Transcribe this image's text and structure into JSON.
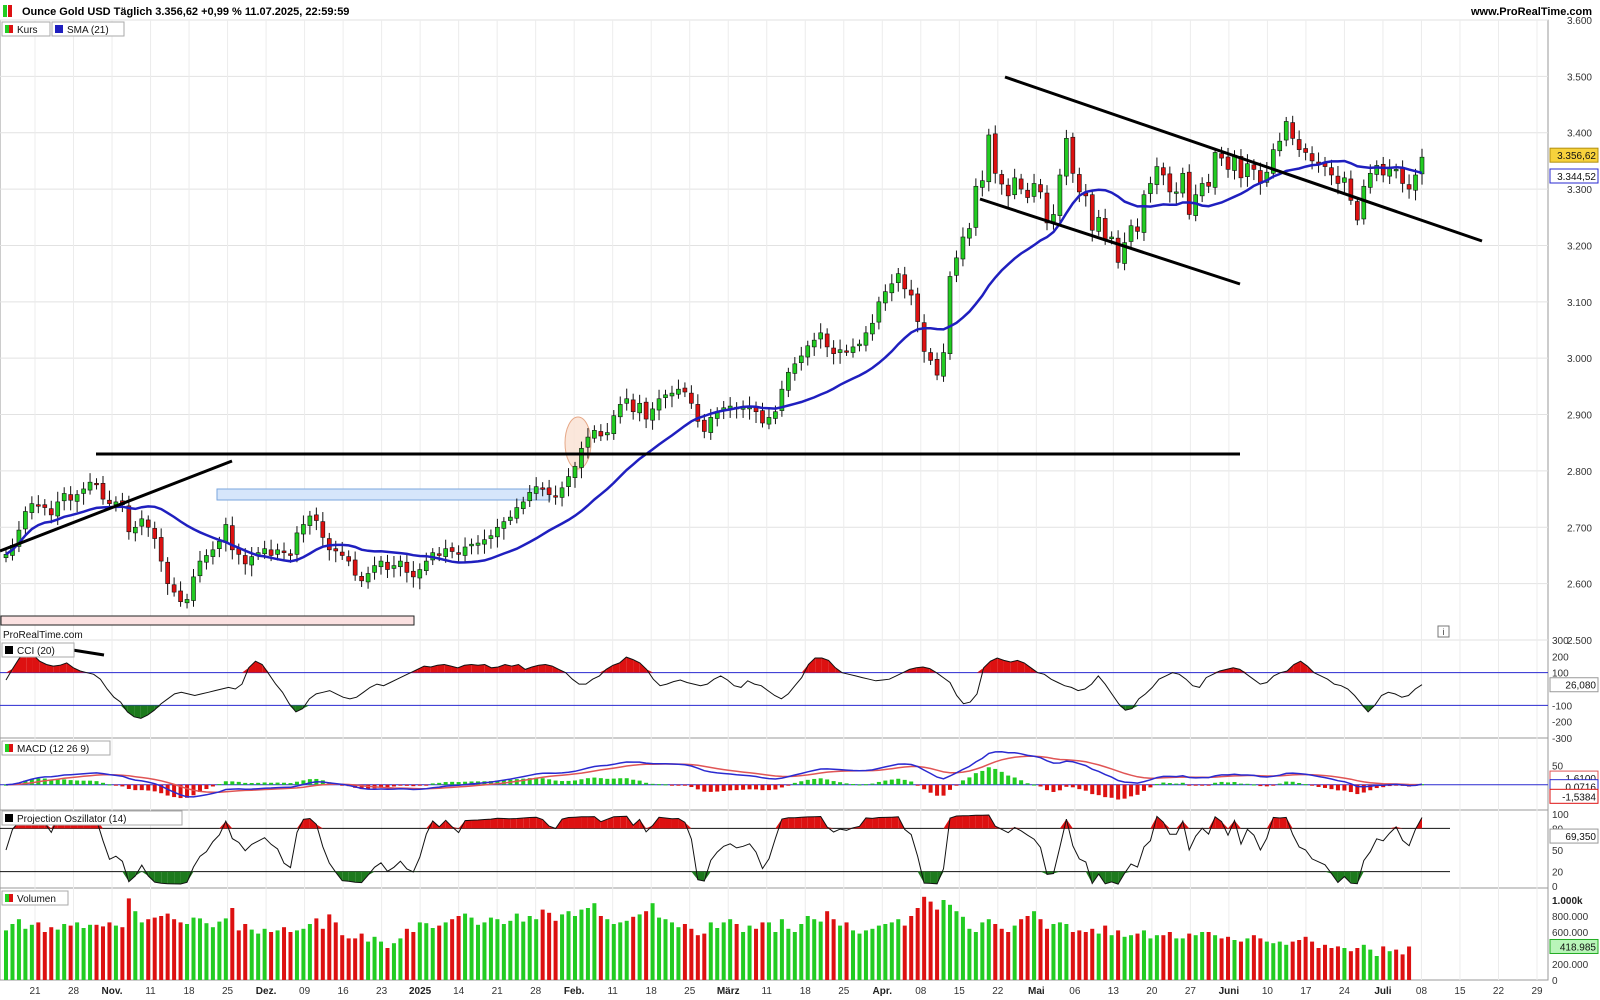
{
  "header": {
    "title": "Ounce Gold USD Täglich 3.356,62 +0,99 % 11.07.2025, 22:59:59",
    "site": "www.ProRealTime.com",
    "watermark": "ProRealTime.com",
    "info_icon": "info-icon"
  },
  "colors": {
    "up": "#22cc22",
    "down": "#dd1111",
    "sma": "#1f1fbf",
    "trendline": "#000000",
    "zone_blue": "#b8d2f5",
    "zone_pink": "#f9d0d0",
    "grid": "#e2e2e2"
  },
  "chart_data": [
    {
      "type": "candlestick",
      "panel": "price",
      "legend": [
        {
          "name": "Kurs",
          "swatch": "up-down"
        },
        {
          "name": "SMA (21)",
          "swatch": "#1f1fbf"
        }
      ],
      "ylim": [
        2500,
        3600
      ],
      "y_ticks": [
        "3.600",
        "3.500",
        "3.400",
        "3.300",
        "3.200",
        "3.100",
        "3.000",
        "2.900",
        "2.800",
        "2.700",
        "2.600",
        "2.500"
      ],
      "x_ticks": [
        "21",
        "28",
        "Nov.",
        "11",
        "18",
        "25",
        "Dez.",
        "09",
        "16",
        "23",
        "2025",
        "14",
        "21",
        "28",
        "Feb.",
        "11",
        "18",
        "25",
        "März",
        "11",
        "18",
        "25",
        "Apr.",
        "08",
        "15",
        "22",
        "Mai",
        "06",
        "13",
        "20",
        "27",
        "Juni",
        "10",
        "17",
        "24",
        "Juli",
        "08",
        "15",
        "22",
        "29"
      ],
      "badges": [
        {
          "label": "3.356,62",
          "value": 3356.62,
          "role": "last-price"
        },
        {
          "label": "3.344,52",
          "value": 3344.52,
          "role": "sma"
        }
      ],
      "closes": [
        2652,
        2668,
        2695,
        2728,
        2742,
        2738,
        2735,
        2722,
        2745,
        2760,
        2748,
        2758,
        2768,
        2780,
        2776,
        2750,
        2742,
        2745,
        2740,
        2692,
        2700,
        2715,
        2700,
        2680,
        2640,
        2600,
        2585,
        2568,
        2572,
        2612,
        2640,
        2650,
        2660,
        2675,
        2705,
        2660,
        2652,
        2635,
        2648,
        2655,
        2662,
        2650,
        2660,
        2655,
        2650,
        2690,
        2705,
        2720,
        2712,
        2682,
        2660,
        2658,
        2650,
        2640,
        2615,
        2605,
        2618,
        2632,
        2640,
        2625,
        2632,
        2640,
        2620,
        2612,
        2625,
        2640,
        2655,
        2650,
        2662,
        2657,
        2652,
        2665,
        2670,
        2672,
        2678,
        2685,
        2700,
        2710,
        2718,
        2735,
        2745,
        2762,
        2772,
        2768,
        2758,
        2755,
        2770,
        2790,
        2808,
        2840,
        2860,
        2872,
        2862,
        2868,
        2898,
        2918,
        2928,
        2905,
        2920,
        2892,
        2910,
        2928,
        2935,
        2938,
        2945,
        2940,
        2920,
        2888,
        2870,
        2895,
        2905,
        2912,
        2915,
        2910,
        2912,
        2915,
        2905,
        2885,
        2895,
        2905,
        2945,
        2975,
        2990,
        3004,
        3022,
        3032,
        3045,
        3020,
        3008,
        3015,
        3012,
        3020,
        3025,
        3045,
        3062,
        3100,
        3118,
        3132,
        3150,
        3123,
        3112,
        3065,
        3012,
        2996,
        2970,
        3010,
        3145,
        3178,
        3215,
        3230,
        3305,
        3315,
        3396,
        3328,
        3309,
        3288,
        3320,
        3300,
        3285,
        3310,
        3295,
        3240,
        3255,
        3325,
        3390,
        3328,
        3295,
        3288,
        3227,
        3250,
        3210,
        3215,
        3170,
        3205,
        3235,
        3225,
        3290,
        3310,
        3340,
        3325,
        3295,
        3295,
        3328,
        3255,
        3290,
        3310,
        3305,
        3365,
        3355,
        3335,
        3360,
        3320,
        3345,
        3335,
        3310,
        3330,
        3370,
        3385,
        3420,
        3390,
        3370,
        3365,
        3350,
        3345,
        3340,
        3325,
        3310,
        3320,
        3280,
        3245,
        3305,
        3328,
        3342,
        3325,
        3336,
        3335,
        3310,
        3300,
        3325,
        3356.62
      ],
      "sma_closes_prefix_last": 3344.52
    },
    {
      "type": "line",
      "panel": "CCI",
      "legend": [
        {
          "name": "CCI (20)",
          "swatch": "#000000"
        }
      ],
      "ylim": [
        -300,
        300
      ],
      "y_ticks": [
        "300",
        "200",
        "100",
        "-100",
        "-200",
        "-300"
      ],
      "levels": [
        100,
        -100
      ],
      "badge": {
        "label": "26,080",
        "value": 26.08
      },
      "values": [
        55,
        125,
        190,
        225,
        210,
        170,
        150,
        140,
        145,
        160,
        130,
        110,
        100,
        90,
        60,
        0,
        -50,
        -80,
        -140,
        -170,
        -180,
        -160,
        -130,
        -90,
        -60,
        -30,
        -20,
        -30,
        -40,
        -30,
        -20,
        -10,
        0,
        10,
        0,
        30,
        130,
        170,
        150,
        90,
        30,
        -20,
        -90,
        -140,
        -120,
        -60,
        -30,
        -20,
        -10,
        -30,
        -50,
        -60,
        -50,
        -20,
        10,
        30,
        20,
        40,
        60,
        80,
        100,
        120,
        140,
        135,
        145,
        150,
        140,
        130,
        145,
        150,
        145,
        150,
        130,
        135,
        150,
        140,
        150,
        120,
        135,
        145,
        150,
        140,
        120,
        100,
        60,
        30,
        30,
        60,
        80,
        120,
        145,
        160,
        195,
        180,
        160,
        120,
        60,
        20,
        30,
        45,
        55,
        40,
        30,
        20,
        30,
        60,
        80,
        55,
        20,
        10,
        50,
        30,
        20,
        -10,
        -40,
        -60,
        -30,
        20,
        70,
        150,
        190,
        190,
        175,
        130,
        100,
        90,
        80,
        70,
        60,
        50,
        55,
        60,
        80,
        100,
        120,
        130,
        135,
        125,
        100,
        70,
        40,
        -40,
        -90,
        -80,
        -30,
        130,
        170,
        190,
        175,
        165,
        175,
        160,
        130,
        100,
        90,
        60,
        40,
        20,
        10,
        -10,
        0,
        30,
        80,
        30,
        -30,
        -90,
        -130,
        -120,
        -60,
        -30,
        10,
        60,
        80,
        100,
        90,
        60,
        20,
        10,
        70,
        90,
        110,
        120,
        130,
        120,
        90,
        60,
        30,
        40,
        80,
        100,
        110,
        150,
        170,
        140,
        100,
        80,
        60,
        30,
        20,
        0,
        -40,
        -90,
        -140,
        -100,
        -40,
        -20,
        -30,
        -50,
        -40,
        0,
        26.08
      ]
    },
    {
      "type": "line+bar",
      "panel": "MACD",
      "legend": [
        {
          "name": "MACD (12 26 9)",
          "swatch": "up-down"
        }
      ],
      "ylim": [
        -60,
        110
      ],
      "y_ticks": [
        "50"
      ],
      "badges": [
        {
          "label": "1,6100",
          "value": 1.61,
          "role": "signal"
        },
        {
          "label": "0,0716",
          "value": 0.0716,
          "role": "macd"
        },
        {
          "label": "-1,5384",
          "value": -1.5384,
          "role": "histogram"
        }
      ],
      "macd_start": 10,
      "signal_start": 8,
      "ema_fast": 12,
      "ema_slow": 26,
      "signal_period": 9
    },
    {
      "type": "line",
      "panel": "Projection Oszillator",
      "legend": [
        {
          "name": "Projection Oszillator (14)",
          "swatch": "#000000"
        }
      ],
      "ylim": [
        0,
        100
      ],
      "y_ticks": [
        "100",
        "80",
        "50",
        "20",
        "0"
      ],
      "levels": [
        80,
        20
      ],
      "badge": {
        "label": "69,350",
        "value": 69.35
      },
      "period": 14
    },
    {
      "type": "bar",
      "panel": "Volumen",
      "legend": [
        {
          "name": "Volumen",
          "swatch": "up-down"
        }
      ],
      "ylim": [
        0,
        1100000
      ],
      "y_ticks": [
        "1.000k",
        "800.000",
        "600.000",
        "400.000",
        "200.000",
        "0"
      ],
      "badge": {
        "label": "418.985",
        "value": 418985
      },
      "values": [
        620000,
        700000,
        760000,
        640000,
        690000,
        720000,
        600000,
        660000,
        630000,
        700000,
        680000,
        720000,
        650000,
        690000,
        690000,
        670000,
        720000,
        680000,
        660000,
        1020000,
        860000,
        720000,
        760000,
        780000,
        800000,
        830000,
        760000,
        720000,
        700000,
        780000,
        770000,
        710000,
        660000,
        730000,
        770000,
        900000,
        620000,
        700000,
        630000,
        580000,
        640000,
        600000,
        620000,
        660000,
        600000,
        620000,
        640000,
        700000,
        770000,
        640000,
        820000,
        720000,
        560000,
        520000,
        520000,
        580000,
        480000,
        540000,
        480000,
        400000,
        460000,
        520000,
        640000,
        600000,
        720000,
        710000,
        650000,
        680000,
        720000,
        760000,
        800000,
        830000,
        780000,
        690000,
        720000,
        780000,
        760000,
        700000,
        740000,
        830000,
        730000,
        800000,
        760000,
        880000,
        840000,
        740000,
        820000,
        860000,
        800000,
        880000,
        900000,
        960000,
        800000,
        760000,
        700000,
        720000,
        740000,
        790000,
        820000,
        860000,
        960000,
        780000,
        760000,
        720000,
        660000,
        700000,
        640000,
        560000,
        580000,
        720000,
        650000,
        720000,
        760000,
        700000,
        600000,
        680000,
        640000,
        720000,
        720000,
        600000,
        760000,
        640000,
        600000,
        700000,
        800000,
        760000,
        730000,
        860000,
        760000,
        680000,
        720000,
        620000,
        580000,
        620000,
        640000,
        680000,
        700000,
        720000,
        760000,
        680000,
        800000,
        900000,
        1040000,
        980000,
        880000,
        1000000,
        940000,
        860000,
        790000,
        640000,
        600000,
        720000,
        760000,
        700000,
        640000,
        600000,
        680000,
        760000,
        800000,
        860000,
        760000,
        640000,
        700000,
        720000,
        700000,
        600000,
        620000,
        600000,
        640000,
        580000,
        680000,
        560000,
        620000,
        540000,
        560000,
        580000,
        620000,
        520000,
        560000,
        560000,
        600000,
        520000,
        520000,
        580000,
        560000,
        600000,
        600000,
        560000,
        520000,
        540000,
        500000,
        480000,
        520000,
        560000,
        520000,
        480000,
        460000,
        480000,
        440000,
        480000,
        500000,
        540000,
        480000,
        400000,
        440000,
        400000,
        420000,
        400000,
        360000,
        400000,
        440000,
        380000,
        300000,
        420000,
        360000,
        380000,
        320000,
        418985
      ]
    }
  ]
}
